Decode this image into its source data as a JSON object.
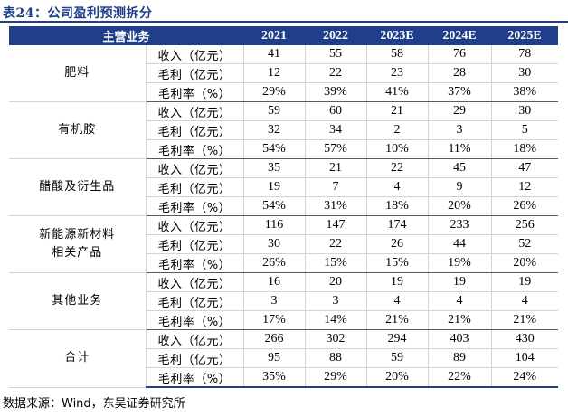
{
  "title": "表24：公司盈利预测拆分",
  "table": {
    "header": [
      "主营业务",
      "",
      "2021",
      "2022",
      "2023E",
      "2024E",
      "2025E"
    ],
    "groups": [
      {
        "segment": "肥料",
        "rows": [
          {
            "metric": "收入（亿元）",
            "values": [
              "41",
              "55",
              "58",
              "76",
              "78"
            ]
          },
          {
            "metric": "毛利（亿元）",
            "values": [
              "12",
              "22",
              "23",
              "28",
              "30"
            ]
          },
          {
            "metric": "毛利率（%）",
            "values": [
              "29%",
              "39%",
              "41%",
              "37%",
              "38%"
            ]
          }
        ]
      },
      {
        "segment": "有机胺",
        "rows": [
          {
            "metric": "收入（亿元）",
            "values": [
              "59",
              "60",
              "21",
              "29",
              "30"
            ]
          },
          {
            "metric": "毛利（亿元）",
            "values": [
              "32",
              "34",
              "2",
              "3",
              "5"
            ]
          },
          {
            "metric": "毛利率（%）",
            "values": [
              "54%",
              "57%",
              "10%",
              "11%",
              "18%"
            ]
          }
        ]
      },
      {
        "segment": "醋酸及衍生品",
        "rows": [
          {
            "metric": "收入（亿元）",
            "values": [
              "35",
              "21",
              "22",
              "45",
              "47"
            ]
          },
          {
            "metric": "毛利（亿元）",
            "values": [
              "19",
              "7",
              "4",
              "9",
              "12"
            ]
          },
          {
            "metric": "毛利率（%）",
            "values": [
              "54%",
              "31%",
              "18%",
              "20%",
              "26%"
            ]
          }
        ]
      },
      {
        "segment": "新能源新材料\n相关产品",
        "rows": [
          {
            "metric": "收入（亿元）",
            "values": [
              "116",
              "147",
              "174",
              "233",
              "256"
            ]
          },
          {
            "metric": "毛利（亿元）",
            "values": [
              "30",
              "22",
              "26",
              "44",
              "52"
            ]
          },
          {
            "metric": "毛利率（%）",
            "values": [
              "26%",
              "15%",
              "15%",
              "19%",
              "20%"
            ]
          }
        ]
      },
      {
        "segment": "其他业务",
        "rows": [
          {
            "metric": "收入（亿元）",
            "values": [
              "16",
              "20",
              "19",
              "19",
              "19"
            ]
          },
          {
            "metric": "毛利（亿元）",
            "values": [
              "3",
              "3",
              "4",
              "4",
              "4"
            ]
          },
          {
            "metric": "毛利率（%）",
            "values": [
              "17%",
              "14%",
              "21%",
              "21%",
              "21%"
            ]
          }
        ]
      },
      {
        "segment": "合计",
        "rows": [
          {
            "metric": "收入（亿元）",
            "values": [
              "266",
              "302",
              "294",
              "403",
              "430"
            ]
          },
          {
            "metric": "毛利（亿元）",
            "values": [
              "95",
              "88",
              "59",
              "89",
              "104"
            ]
          },
          {
            "metric": "毛利率（%）",
            "values": [
              "35%",
              "29%",
              "20%",
              "22%",
              "24%"
            ]
          }
        ]
      }
    ]
  },
  "source": "数据来源：Wind，东吴证券研究所",
  "colors": {
    "header_bg": "#1f3f8a",
    "header_text": "#ffffff",
    "title": "#1f3f8a"
  }
}
